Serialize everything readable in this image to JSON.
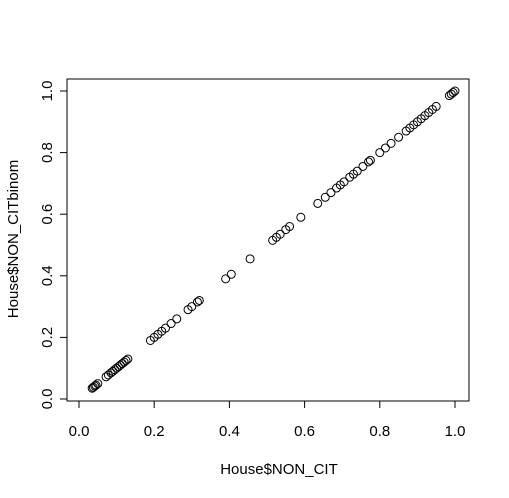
{
  "chart_data": {
    "type": "scatter",
    "title": "",
    "xlabel": "House$NON_CIT",
    "ylabel": "House$NON_CITbinom",
    "xlim": [
      0.0,
      1.0
    ],
    "ylim": [
      0.0,
      1.0
    ],
    "x_ticks": [
      "0.0",
      "0.2",
      "0.4",
      "0.6",
      "0.8",
      "1.0"
    ],
    "y_ticks": [
      "0.0",
      "0.2",
      "0.4",
      "0.6",
      "0.8",
      "1.0"
    ],
    "grid": false,
    "marker": "open-circle",
    "series": [
      {
        "points": [
          [
            0.035,
            0.035
          ],
          [
            0.038,
            0.038
          ],
          [
            0.042,
            0.042
          ],
          [
            0.045,
            0.045
          ],
          [
            0.05,
            0.05
          ],
          [
            0.072,
            0.072
          ],
          [
            0.078,
            0.078
          ],
          [
            0.085,
            0.085
          ],
          [
            0.09,
            0.09
          ],
          [
            0.095,
            0.095
          ],
          [
            0.1,
            0.1
          ],
          [
            0.105,
            0.105
          ],
          [
            0.11,
            0.11
          ],
          [
            0.115,
            0.115
          ],
          [
            0.12,
            0.12
          ],
          [
            0.125,
            0.125
          ],
          [
            0.13,
            0.13
          ],
          [
            0.19,
            0.19
          ],
          [
            0.2,
            0.2
          ],
          [
            0.21,
            0.21
          ],
          [
            0.22,
            0.22
          ],
          [
            0.23,
            0.23
          ],
          [
            0.245,
            0.245
          ],
          [
            0.26,
            0.26
          ],
          [
            0.29,
            0.29
          ],
          [
            0.3,
            0.3
          ],
          [
            0.315,
            0.315
          ],
          [
            0.32,
            0.32
          ],
          [
            0.39,
            0.39
          ],
          [
            0.405,
            0.405
          ],
          [
            0.455,
            0.455
          ],
          [
            0.515,
            0.515
          ],
          [
            0.525,
            0.525
          ],
          [
            0.535,
            0.535
          ],
          [
            0.55,
            0.55
          ],
          [
            0.56,
            0.56
          ],
          [
            0.59,
            0.59
          ],
          [
            0.635,
            0.635
          ],
          [
            0.655,
            0.655
          ],
          [
            0.67,
            0.67
          ],
          [
            0.685,
            0.685
          ],
          [
            0.695,
            0.695
          ],
          [
            0.705,
            0.705
          ],
          [
            0.72,
            0.72
          ],
          [
            0.73,
            0.73
          ],
          [
            0.74,
            0.74
          ],
          [
            0.755,
            0.755
          ],
          [
            0.77,
            0.77
          ],
          [
            0.775,
            0.775
          ],
          [
            0.8,
            0.8
          ],
          [
            0.815,
            0.815
          ],
          [
            0.83,
            0.83
          ],
          [
            0.85,
            0.85
          ],
          [
            0.87,
            0.87
          ],
          [
            0.88,
            0.88
          ],
          [
            0.89,
            0.89
          ],
          [
            0.9,
            0.9
          ],
          [
            0.91,
            0.91
          ],
          [
            0.92,
            0.92
          ],
          [
            0.93,
            0.93
          ],
          [
            0.94,
            0.94
          ],
          [
            0.95,
            0.95
          ],
          [
            0.985,
            0.985
          ],
          [
            0.99,
            0.99
          ],
          [
            0.995,
            0.995
          ],
          [
            1.0,
            1.0
          ]
        ]
      }
    ]
  }
}
